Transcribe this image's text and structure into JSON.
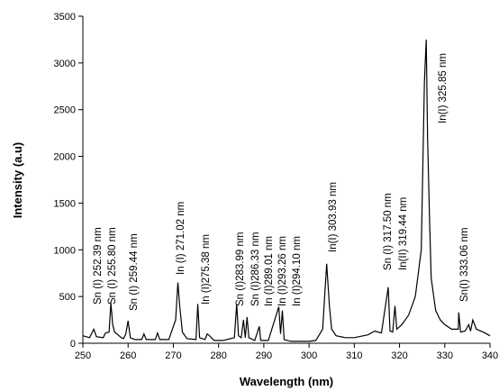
{
  "chart_data": {
    "type": "line",
    "x_label": "Wavelength (nm)",
    "y_label": "Intensity (a.u)",
    "xlim": [
      250,
      340
    ],
    "xticks": [
      250,
      260,
      270,
      280,
      290,
      300,
      310,
      320,
      330,
      340
    ],
    "ylim": [
      0,
      3500
    ],
    "yticks": [
      0,
      500,
      1000,
      1500,
      2000,
      2500,
      3000,
      3500
    ],
    "color": "#000000",
    "x": [
      250.0,
      251.5,
      252.4,
      253.0,
      254.5,
      255.0,
      255.8,
      256.2,
      256.6,
      257.0,
      257.5,
      258.5,
      259.0,
      259.5,
      260.0,
      260.5,
      261.5,
      263.0,
      263.5,
      264.0,
      266.0,
      266.5,
      267.0,
      269.0,
      270.5,
      271.0,
      271.4,
      272.0,
      273.0,
      275.0,
      275.4,
      275.8,
      277.0,
      277.5,
      278.0,
      279.0,
      281.0,
      283.5,
      284.0,
      284.4,
      285.0,
      285.5,
      285.9,
      286.3,
      286.7,
      288.0,
      289.0,
      289.3,
      291.0,
      293.3,
      293.7,
      294.1,
      294.5,
      296.0,
      297.5,
      300.0,
      301.5,
      303.0,
      303.9,
      304.5,
      305.0,
      306.0,
      308.0,
      310.0,
      313.0,
      314.5,
      316.0,
      317.5,
      317.9,
      318.5,
      319.0,
      319.4,
      320.5,
      322.0,
      323.5,
      324.8,
      325.5,
      325.9,
      326.2,
      326.6,
      327.0,
      328.0,
      329.0,
      330.0,
      331.5,
      333.0,
      333.1,
      333.5,
      334.5,
      335.3,
      335.7,
      336.2,
      337.0,
      338.5,
      340.0
    ],
    "values": [
      80,
      60,
      150,
      70,
      60,
      110,
      120,
      430,
      200,
      120,
      100,
      60,
      50,
      100,
      240,
      60,
      40,
      40,
      100,
      40,
      40,
      110,
      40,
      40,
      250,
      650,
      400,
      120,
      50,
      40,
      420,
      60,
      40,
      100,
      80,
      30,
      30,
      60,
      420,
      80,
      60,
      250,
      60,
      280,
      60,
      30,
      180,
      30,
      30,
      390,
      100,
      350,
      40,
      20,
      20,
      20,
      30,
      150,
      850,
      400,
      150,
      80,
      60,
      60,
      90,
      130,
      110,
      600,
      130,
      120,
      400,
      150,
      200,
      300,
      500,
      1000,
      2800,
      3250,
      2200,
      1400,
      700,
      350,
      250,
      200,
      150,
      150,
      330,
      120,
      130,
      200,
      130,
      250,
      150,
      120,
      80
    ],
    "annotations": [
      "Sn (I)  252.39 nm",
      "Sn (I) 255.80 nm",
      "Sn (I) 259.44 nm",
      "In (I) 271.02 nm",
      "In (I)275.38 nm",
      "Sn (I)283.99 nm",
      "Sn (I)286.33 nm",
      "In (I)289.01 nm",
      "In (I)293.26 nm",
      "In (I)294.10 nm",
      "In(I) 303.93 nm",
      "Sn (I) 317.50 nm",
      "In(II) 319.44 nm",
      "In(I) 325.85 nm",
      "Sn(I) 333.06 nm"
    ]
  }
}
